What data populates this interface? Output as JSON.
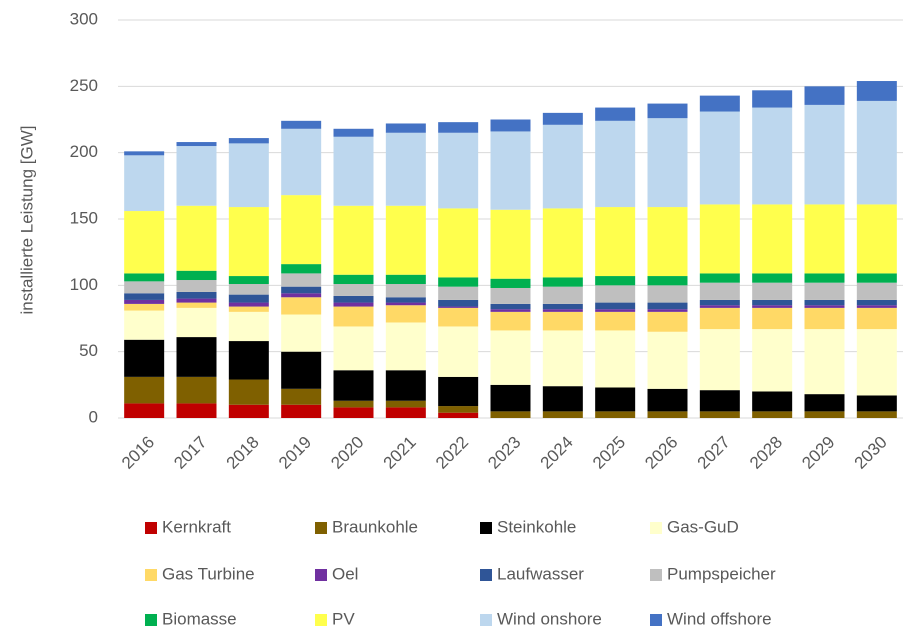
{
  "chart_data": {
    "type": "stacked_bar",
    "y_axis_label": "installierte Leistung [GW]",
    "categories": [
      "2016",
      "2017",
      "2018",
      "2019",
      "2020",
      "2021",
      "2022",
      "2023",
      "2024",
      "2025",
      "2026",
      "2027",
      "2028",
      "2029",
      "2030"
    ],
    "ylim": [
      0,
      300
    ],
    "yticks": [
      0,
      50,
      100,
      150,
      200,
      250,
      300
    ],
    "grid": true,
    "legend_position": "bottom",
    "series": [
      {
        "name": "Kernkraft",
        "color": "#c00000",
        "values": [
          11,
          11,
          10,
          10,
          8,
          8,
          4,
          0,
          0,
          0,
          0,
          0,
          0,
          0,
          0
        ]
      },
      {
        "name": "Braunkohle",
        "color": "#7f6000",
        "values": [
          20,
          20,
          19,
          12,
          5,
          5,
          5,
          5,
          5,
          5,
          5,
          5,
          5,
          5,
          5
        ]
      },
      {
        "name": "Steinkohle",
        "color": "#000000",
        "values": [
          28,
          30,
          29,
          28,
          23,
          23,
          22,
          20,
          19,
          18,
          17,
          16,
          15,
          13,
          12
        ]
      },
      {
        "name": "Gas-GuD",
        "color": "#ffffcc",
        "values": [
          22,
          22,
          22,
          28,
          33,
          36,
          38,
          41,
          42,
          43,
          43,
          46,
          47,
          49,
          50
        ]
      },
      {
        "name": "Gas Turbine",
        "color": "#ffd966",
        "values": [
          5,
          4,
          4,
          13,
          15,
          13,
          14,
          14,
          14,
          14,
          15,
          16,
          16,
          16,
          16
        ]
      },
      {
        "name": "Oel",
        "color": "#7030a0",
        "values": [
          3,
          3,
          3,
          3,
          3,
          2,
          1,
          2,
          2,
          2,
          2,
          2,
          2,
          2,
          2
        ]
      },
      {
        "name": "Laufwasser",
        "color": "#2f5597",
        "values": [
          5,
          5,
          6,
          5,
          5,
          4,
          5,
          4,
          4,
          5,
          5,
          4,
          4,
          4,
          4
        ]
      },
      {
        "name": "Pumpspeicher",
        "color": "#bfbfbf",
        "values": [
          9,
          9,
          8,
          10,
          9,
          10,
          10,
          12,
          13,
          13,
          13,
          13,
          13,
          13,
          13
        ]
      },
      {
        "name": "Biomasse",
        "color": "#00b050",
        "values": [
          6,
          7,
          6,
          7,
          7,
          7,
          7,
          7,
          7,
          7,
          7,
          7,
          7,
          7,
          7
        ]
      },
      {
        "name": "PV",
        "color": "#ffff4d",
        "values": [
          47,
          49,
          52,
          52,
          52,
          52,
          52,
          52,
          52,
          52,
          52,
          52,
          52,
          52,
          52
        ]
      },
      {
        "name": "Wind onshore",
        "color": "#bdd7ee",
        "values": [
          42,
          45,
          48,
          50,
          52,
          55,
          57,
          59,
          63,
          65,
          67,
          70,
          73,
          75,
          78
        ]
      },
      {
        "name": "Wind offshore",
        "color": "#4472c4",
        "values": [
          3,
          3,
          4,
          6,
          6,
          7,
          8,
          9,
          9,
          10,
          11,
          12,
          13,
          14,
          15
        ]
      }
    ]
  }
}
